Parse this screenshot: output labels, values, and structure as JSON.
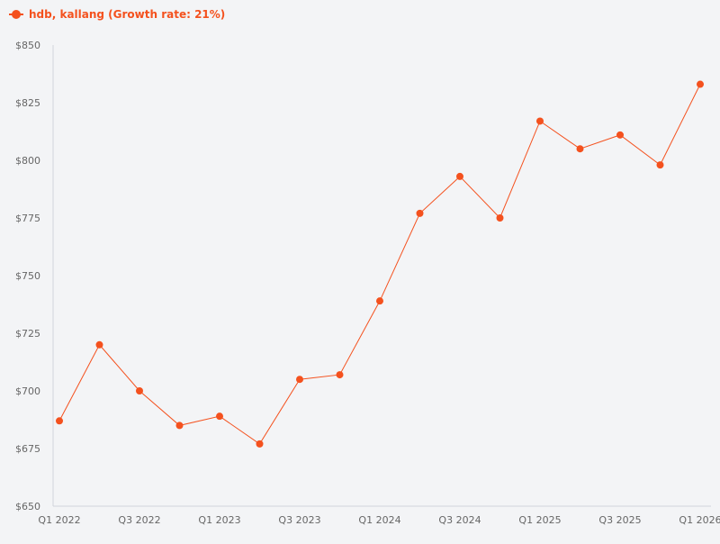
{
  "chart_data": {
    "type": "line",
    "title": "",
    "xlabel": "",
    "ylabel": "",
    "ylim": [
      650,
      850
    ],
    "y_ticks": [
      "$650",
      "$675",
      "$700",
      "$725",
      "$750",
      "$775",
      "$800",
      "$825",
      "$850"
    ],
    "y_tick_values": [
      650,
      675,
      700,
      725,
      750,
      775,
      800,
      825,
      850
    ],
    "x_tick_labels": [
      "Q1 2022",
      "Q3 2022",
      "Q1 2023",
      "Q3 2023",
      "Q1 2024",
      "Q3 2024",
      "Q1 2025",
      "Q3 2025",
      "Q1 2026"
    ],
    "categories": [
      "Q1 2022",
      "Q2 2022",
      "Q3 2022",
      "Q4 2022",
      "Q1 2023",
      "Q2 2023",
      "Q3 2023",
      "Q4 2023",
      "Q1 2024",
      "Q2 2024",
      "Q3 2024",
      "Q4 2024",
      "Q1 2025",
      "Q2 2025",
      "Q3 2025",
      "Q4 2025",
      "Q1 2026"
    ],
    "series": [
      {
        "name": "hdb, kallang (Growth rate: 21%)",
        "color": "#f4511e",
        "values": [
          687,
          720,
          700,
          685,
          689,
          677,
          705,
          707,
          739,
          777,
          793,
          775,
          817,
          805,
          811,
          798,
          833
        ]
      }
    ],
    "grid": false,
    "legend_position": "top-left"
  }
}
